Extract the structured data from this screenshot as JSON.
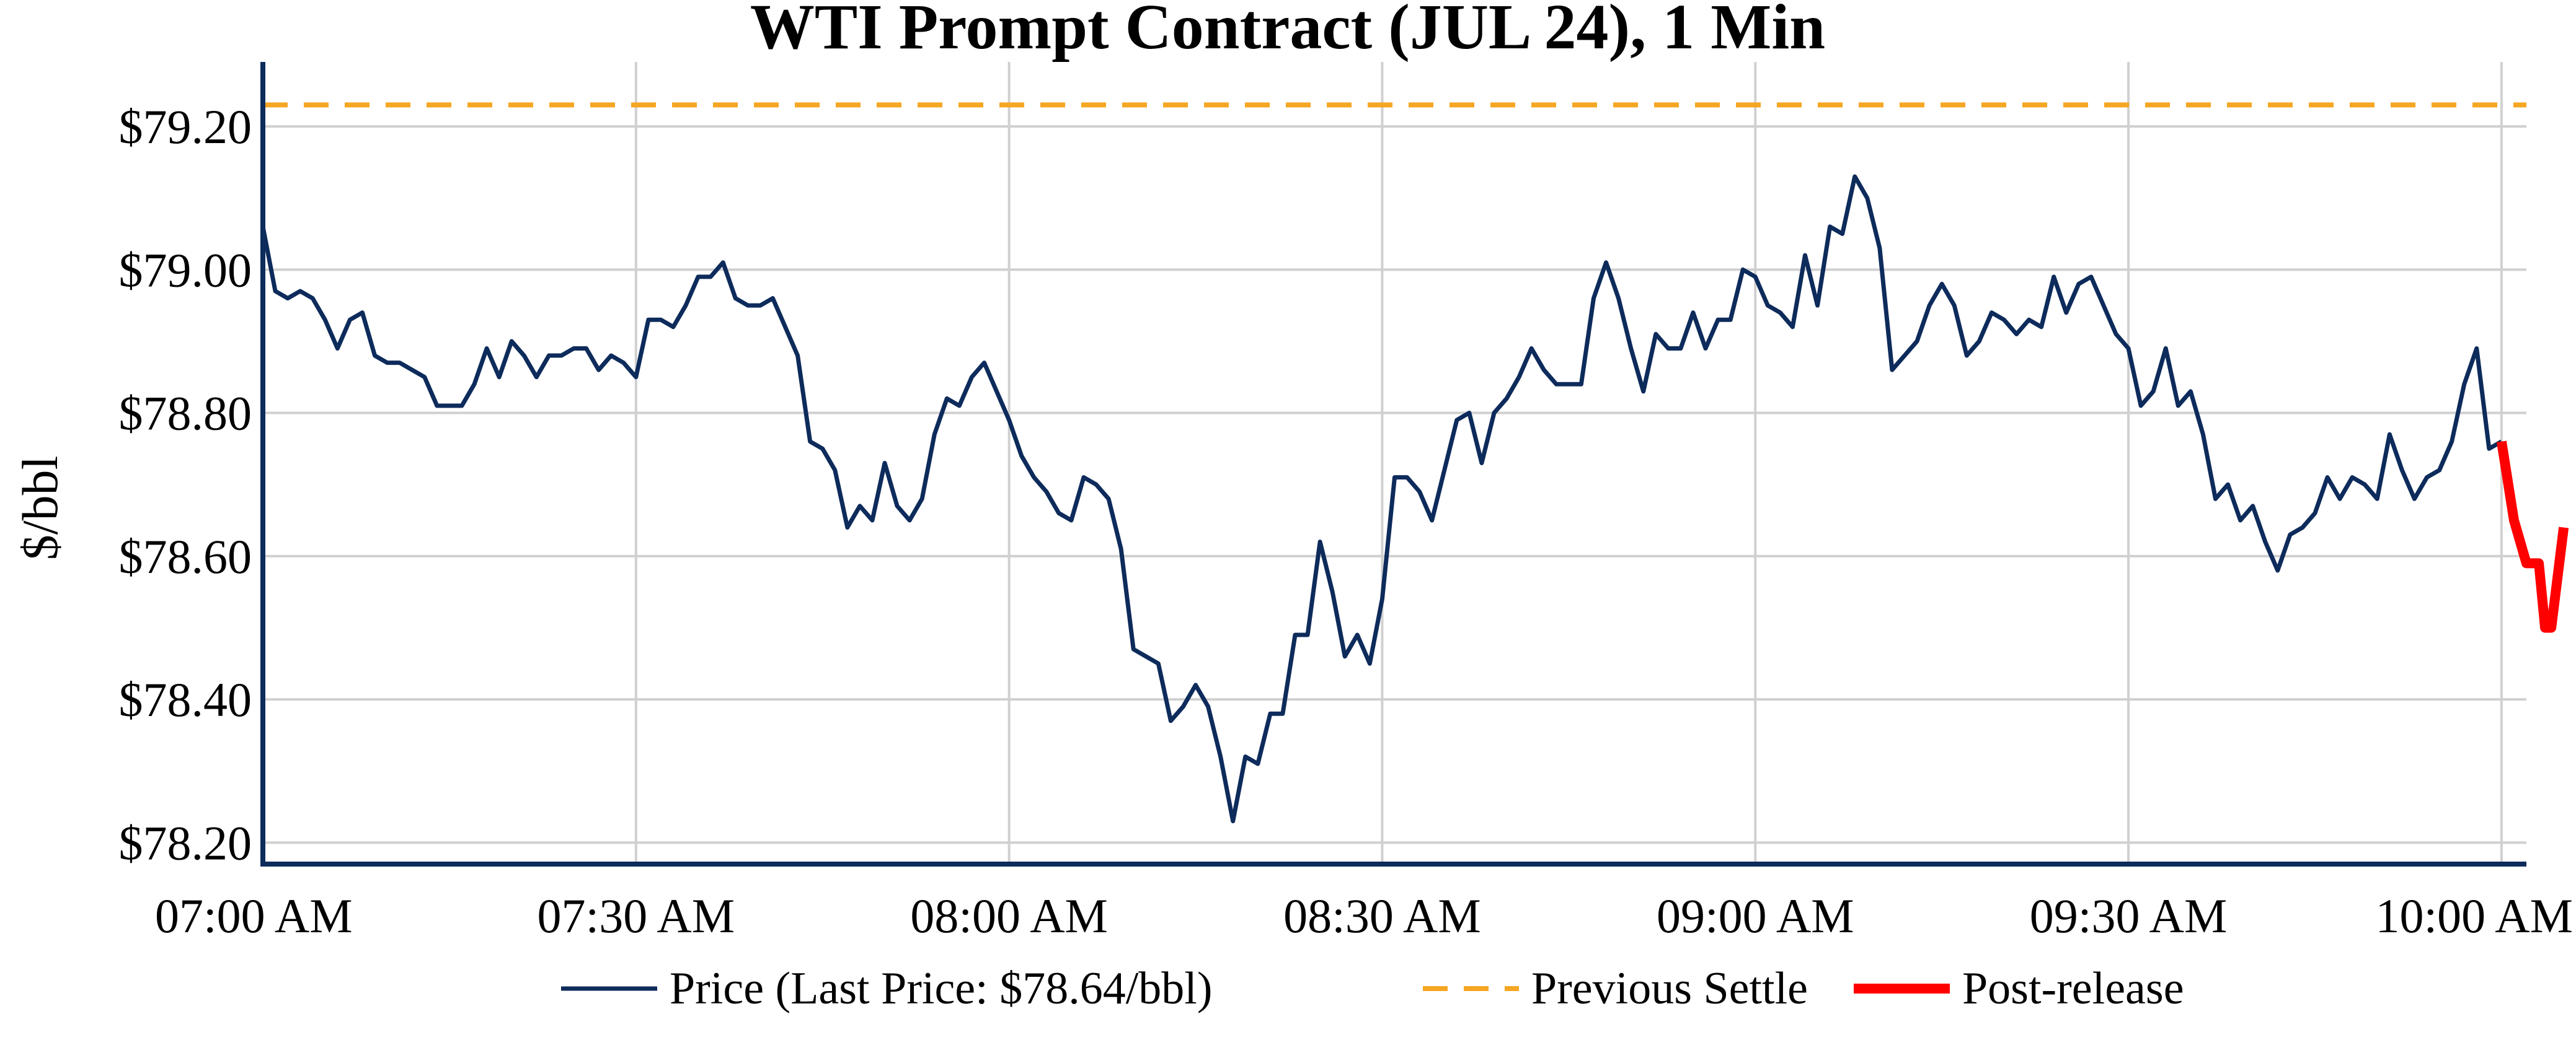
{
  "chart_data": {
    "type": "line",
    "title": "WTI Prompt Contract (JUL 24), 1 Min",
    "xlabel": "",
    "ylabel": "$/bbl",
    "x_unit": "minutes",
    "xlim": [
      0,
      182
    ],
    "ylim": [
      78.17,
      79.29
    ],
    "grid": true,
    "legend_position": "bottom",
    "x_ticks": [
      {
        "value": 0,
        "label": "07:00 AM"
      },
      {
        "value": 30,
        "label": "07:30 AM"
      },
      {
        "value": 60,
        "label": "08:00 AM"
      },
      {
        "value": 90,
        "label": "08:30 AM"
      },
      {
        "value": 120,
        "label": "09:00 AM"
      },
      {
        "value": 150,
        "label": "09:30 AM"
      },
      {
        "value": 180,
        "label": "10:00 AM"
      }
    ],
    "y_ticks": [
      {
        "value": 78.2,
        "label": "$78.20"
      },
      {
        "value": 78.4,
        "label": "$78.40"
      },
      {
        "value": 78.6,
        "label": "$78.60"
      },
      {
        "value": 78.8,
        "label": "$78.80"
      },
      {
        "value": 79.0,
        "label": "$79.00"
      },
      {
        "value": 79.2,
        "label": "$79.20"
      }
    ],
    "series": [
      {
        "name": "Price (Last Price: $78.64/bbl)",
        "color": "#0d2b5b",
        "style": "solid",
        "points": [
          [
            0,
            79.06
          ],
          [
            1,
            78.97
          ],
          [
            2,
            78.96
          ],
          [
            3,
            78.97
          ],
          [
            4,
            78.96
          ],
          [
            5,
            78.93
          ],
          [
            6,
            78.89
          ],
          [
            7,
            78.93
          ],
          [
            8,
            78.94
          ],
          [
            9,
            78.88
          ],
          [
            10,
            78.87
          ],
          [
            11,
            78.87
          ],
          [
            12,
            78.86
          ],
          [
            13,
            78.85
          ],
          [
            14,
            78.81
          ],
          [
            15,
            78.81
          ],
          [
            16,
            78.81
          ],
          [
            17,
            78.84
          ],
          [
            18,
            78.89
          ],
          [
            19,
            78.85
          ],
          [
            20,
            78.9
          ],
          [
            21,
            78.88
          ],
          [
            22,
            78.85
          ],
          [
            23,
            78.88
          ],
          [
            24,
            78.88
          ],
          [
            25,
            78.89
          ],
          [
            26,
            78.89
          ],
          [
            27,
            78.86
          ],
          [
            28,
            78.88
          ],
          [
            29,
            78.87
          ],
          [
            30,
            78.85
          ],
          [
            31,
            78.93
          ],
          [
            32,
            78.93
          ],
          [
            33,
            78.92
          ],
          [
            34,
            78.95
          ],
          [
            35,
            78.99
          ],
          [
            36,
            78.99
          ],
          [
            37,
            79.01
          ],
          [
            38,
            78.96
          ],
          [
            39,
            78.95
          ],
          [
            40,
            78.95
          ],
          [
            41,
            78.96
          ],
          [
            42,
            78.92
          ],
          [
            43,
            78.88
          ],
          [
            44,
            78.76
          ],
          [
            45,
            78.75
          ],
          [
            46,
            78.72
          ],
          [
            47,
            78.64
          ],
          [
            48,
            78.67
          ],
          [
            49,
            78.65
          ],
          [
            50,
            78.73
          ],
          [
            51,
            78.67
          ],
          [
            52,
            78.65
          ],
          [
            53,
            78.68
          ],
          [
            54,
            78.77
          ],
          [
            55,
            78.82
          ],
          [
            56,
            78.81
          ],
          [
            57,
            78.85
          ],
          [
            58,
            78.87
          ],
          [
            59,
            78.83
          ],
          [
            60,
            78.79
          ],
          [
            61,
            78.74
          ],
          [
            62,
            78.71
          ],
          [
            63,
            78.69
          ],
          [
            64,
            78.66
          ],
          [
            65,
            78.65
          ],
          [
            66,
            78.71
          ],
          [
            67,
            78.7
          ],
          [
            68,
            78.68
          ],
          [
            69,
            78.61
          ],
          [
            70,
            78.47
          ],
          [
            71,
            78.46
          ],
          [
            72,
            78.45
          ],
          [
            73,
            78.37
          ],
          [
            74,
            78.39
          ],
          [
            75,
            78.42
          ],
          [
            76,
            78.39
          ],
          [
            77,
            78.32
          ],
          [
            78,
            78.23
          ],
          [
            79,
            78.32
          ],
          [
            80,
            78.31
          ],
          [
            81,
            78.38
          ],
          [
            82,
            78.38
          ],
          [
            83,
            78.49
          ],
          [
            84,
            78.49
          ],
          [
            85,
            78.62
          ],
          [
            86,
            78.55
          ],
          [
            87,
            78.46
          ],
          [
            88,
            78.49
          ],
          [
            89,
            78.45
          ],
          [
            90,
            78.54
          ],
          [
            91,
            78.71
          ],
          [
            92,
            78.71
          ],
          [
            93,
            78.69
          ],
          [
            94,
            78.65
          ],
          [
            95,
            78.72
          ],
          [
            96,
            78.79
          ],
          [
            97,
            78.8
          ],
          [
            98,
            78.73
          ],
          [
            99,
            78.8
          ],
          [
            100,
            78.82
          ],
          [
            101,
            78.85
          ],
          [
            102,
            78.89
          ],
          [
            103,
            78.86
          ],
          [
            104,
            78.84
          ],
          [
            105,
            78.84
          ],
          [
            106,
            78.84
          ],
          [
            107,
            78.96
          ],
          [
            108,
            79.01
          ],
          [
            109,
            78.96
          ],
          [
            110,
            78.89
          ],
          [
            111,
            78.83
          ],
          [
            112,
            78.91
          ],
          [
            113,
            78.89
          ],
          [
            114,
            78.89
          ],
          [
            115,
            78.94
          ],
          [
            116,
            78.89
          ],
          [
            117,
            78.93
          ],
          [
            118,
            78.93
          ],
          [
            119,
            79.0
          ],
          [
            120,
            78.99
          ],
          [
            121,
            78.95
          ],
          [
            122,
            78.94
          ],
          [
            123,
            78.92
          ],
          [
            124,
            79.02
          ],
          [
            125,
            78.95
          ],
          [
            126,
            79.06
          ],
          [
            127,
            79.05
          ],
          [
            128,
            79.13
          ],
          [
            129,
            79.1
          ],
          [
            130,
            79.03
          ],
          [
            131,
            78.86
          ],
          [
            132,
            78.88
          ],
          [
            133,
            78.9
          ],
          [
            134,
            78.95
          ],
          [
            135,
            78.98
          ],
          [
            136,
            78.95
          ],
          [
            137,
            78.88
          ],
          [
            138,
            78.9
          ],
          [
            139,
            78.94
          ],
          [
            140,
            78.93
          ],
          [
            141,
            78.91
          ],
          [
            142,
            78.93
          ],
          [
            143,
            78.92
          ],
          [
            144,
            78.99
          ],
          [
            145,
            78.94
          ],
          [
            146,
            78.98
          ],
          [
            147,
            78.99
          ],
          [
            148,
            78.95
          ],
          [
            149,
            78.91
          ],
          [
            150,
            78.89
          ],
          [
            151,
            78.81
          ],
          [
            152,
            78.83
          ],
          [
            153,
            78.89
          ],
          [
            154,
            78.81
          ],
          [
            155,
            78.83
          ],
          [
            156,
            78.77
          ],
          [
            157,
            78.68
          ],
          [
            158,
            78.7
          ],
          [
            159,
            78.65
          ],
          [
            160,
            78.67
          ],
          [
            161,
            78.62
          ],
          [
            162,
            78.58
          ],
          [
            163,
            78.63
          ],
          [
            164,
            78.64
          ],
          [
            165,
            78.66
          ],
          [
            166,
            78.71
          ],
          [
            167,
            78.68
          ],
          [
            168,
            78.71
          ],
          [
            169,
            78.7
          ],
          [
            170,
            78.68
          ],
          [
            171,
            78.77
          ],
          [
            172,
            78.72
          ],
          [
            173,
            78.68
          ],
          [
            174,
            78.71
          ],
          [
            175,
            78.72
          ],
          [
            176,
            78.76
          ],
          [
            177,
            78.84
          ],
          [
            178,
            78.89
          ],
          [
            179,
            78.75
          ],
          [
            180,
            78.76
          ]
        ]
      },
      {
        "name": "Previous Settle",
        "color": "#f5a623",
        "style": "dashed",
        "points": [
          [
            0,
            79.23
          ],
          [
            182,
            79.23
          ]
        ]
      },
      {
        "name": "Post-release",
        "color": "#ff0000",
        "style": "solid-thick",
        "points": [
          [
            180,
            78.76
          ],
          [
            181,
            78.65
          ],
          [
            182,
            78.59
          ],
          [
            183,
            78.59
          ],
          [
            183.5,
            78.5
          ],
          [
            184,
            78.5
          ],
          [
            184.5,
            78.57
          ],
          [
            185,
            78.64
          ]
        ]
      }
    ]
  }
}
